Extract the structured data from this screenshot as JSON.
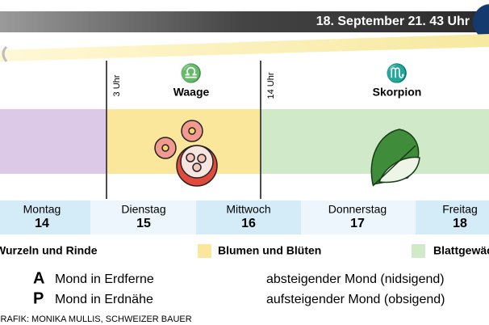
{
  "header": {
    "date": "18. September 21. 43 Uhr"
  },
  "signs": [
    {
      "symbol": "♎",
      "name": "Waage",
      "time": "3 Uhr"
    },
    {
      "symbol": "♏",
      "name": "Skorpion",
      "time": "14 Uhr"
    }
  ],
  "days": [
    {
      "name": "Montag",
      "number": "14"
    },
    {
      "name": "Dienstag",
      "number": "15"
    },
    {
      "name": "Mittwoch",
      "number": "16"
    },
    {
      "name": "Donnerstag",
      "number": "17"
    },
    {
      "name": "Freitag",
      "number": "18"
    }
  ],
  "legend": [
    "Wurzeln und Rinde",
    "Blumen und Blüten",
    "Blattgewächse"
  ],
  "moon": [
    {
      "letter": "A",
      "text": "Mond in Erdferne"
    },
    {
      "letter": "P",
      "text": "Mond in Erdnähe"
    }
  ],
  "direction": [
    "absteigender Mond (nidsigend)",
    "aufsteigender Mond (obsigend)"
  ],
  "credit": "GRAFIK: MONIKA MULLIS, SCHWEIZER BAUER"
}
